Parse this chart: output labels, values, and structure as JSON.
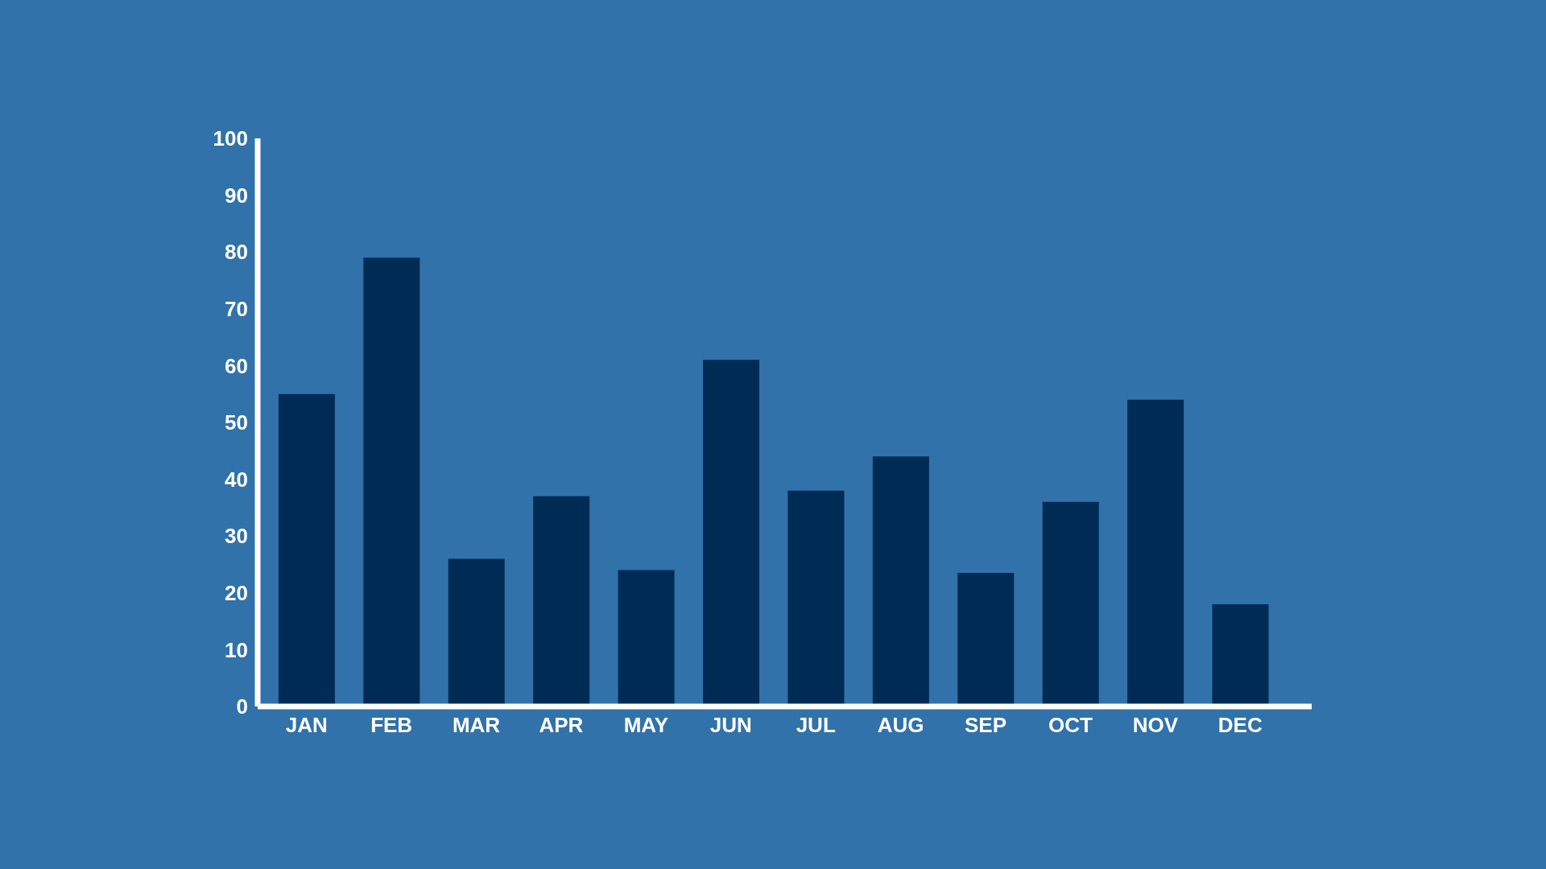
{
  "chart_data": {
    "type": "bar",
    "categories": [
      "JAN",
      "FEB",
      "MAR",
      "APR",
      "MAY",
      "JUN",
      "JUL",
      "AUG",
      "SEP",
      "OCT",
      "NOV",
      "DEC"
    ],
    "values": [
      55,
      79,
      26,
      37,
      24,
      61,
      38,
      44,
      23.5,
      36,
      54,
      18
    ],
    "color": "#002b55",
    "ylim": [
      0,
      100
    ],
    "yticks": [
      0,
      10,
      20,
      30,
      40,
      50,
      60,
      70,
      80,
      90,
      100
    ]
  }
}
